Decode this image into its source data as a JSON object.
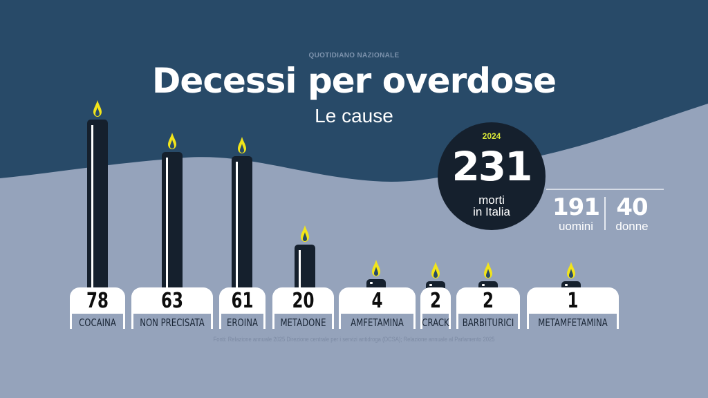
{
  "header": {
    "brand": "QUOTIDIANO NAZIONALE",
    "title": "Decessi per overdose",
    "subtitle": "Le cause"
  },
  "summary": {
    "year": "2024",
    "total": "231",
    "total_label_1": "morti",
    "total_label_2": "in Italia",
    "men": "191",
    "men_label": "uomini",
    "women": "40",
    "women_label": "donne"
  },
  "chart_data": {
    "type": "bar",
    "title": "Decessi per overdose",
    "subtitle": "Le cause",
    "categories": [
      "COCAINA",
      "NON PRECISATA",
      "EROINA",
      "METADONE",
      "AMFETAMINA",
      "CRACK",
      "BARBITURICI",
      "METAMFETAMINA"
    ],
    "values": [
      78,
      63,
      61,
      20,
      4,
      2,
      2,
      1
    ],
    "value_labels": [
      "78",
      "63",
      "61",
      "20",
      "4",
      "2",
      "2",
      "1"
    ],
    "mark": "candle"
  },
  "source": "Fonti: Relazione annuale 2025 Direzione centrale per i servizi antidroga (DCSA); Relazione annuale al Parlamento 2025",
  "colors": {
    "top_background": "#284a68",
    "bottom_background": "#95a3bb",
    "candle": "#15202d",
    "flame": "#f2e51a",
    "year": "#d7e637"
  }
}
